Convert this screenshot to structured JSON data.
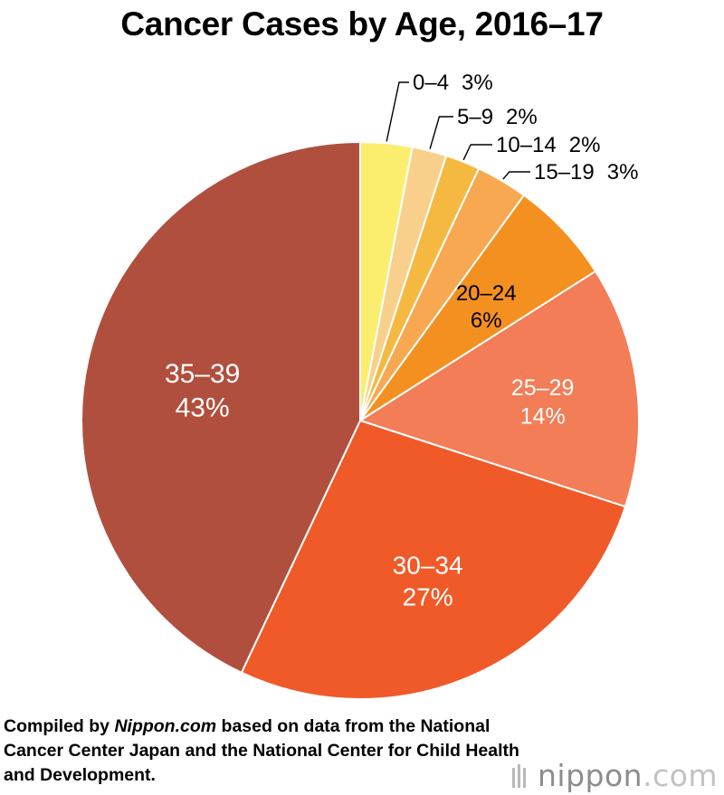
{
  "chart_data": {
    "type": "pie",
    "title": "Cancer Cases by Age, 2016–17",
    "slices": [
      {
        "label": "0–4",
        "value": 3,
        "pct_label": "3%",
        "color": "#fbee6f"
      },
      {
        "label": "5–9",
        "value": 2,
        "pct_label": "2%",
        "color": "#f9d08b"
      },
      {
        "label": "10–14",
        "value": 2,
        "pct_label": "2%",
        "color": "#f5b941"
      },
      {
        "label": "15–19",
        "value": 3,
        "pct_label": "3%",
        "color": "#f7a851"
      },
      {
        "label": "20–24",
        "value": 6,
        "pct_label": "6%",
        "color": "#f4901f"
      },
      {
        "label": "25–29",
        "value": 14,
        "pct_label": "14%",
        "color": "#f27d57"
      },
      {
        "label": "30–34",
        "value": 27,
        "pct_label": "27%",
        "color": "#ef5a28"
      },
      {
        "label": "35–39",
        "value": 43,
        "pct_label": "43%",
        "color": "#b04f3d"
      }
    ]
  },
  "source_note": {
    "prefix": "Compiled by ",
    "site": "Nippon.com",
    "suffix": " based on data from the National Cancer Center Japan and the National Center for Child Health and Development."
  },
  "logo": {
    "text_dark": "nippon",
    "text_light": ".com"
  }
}
